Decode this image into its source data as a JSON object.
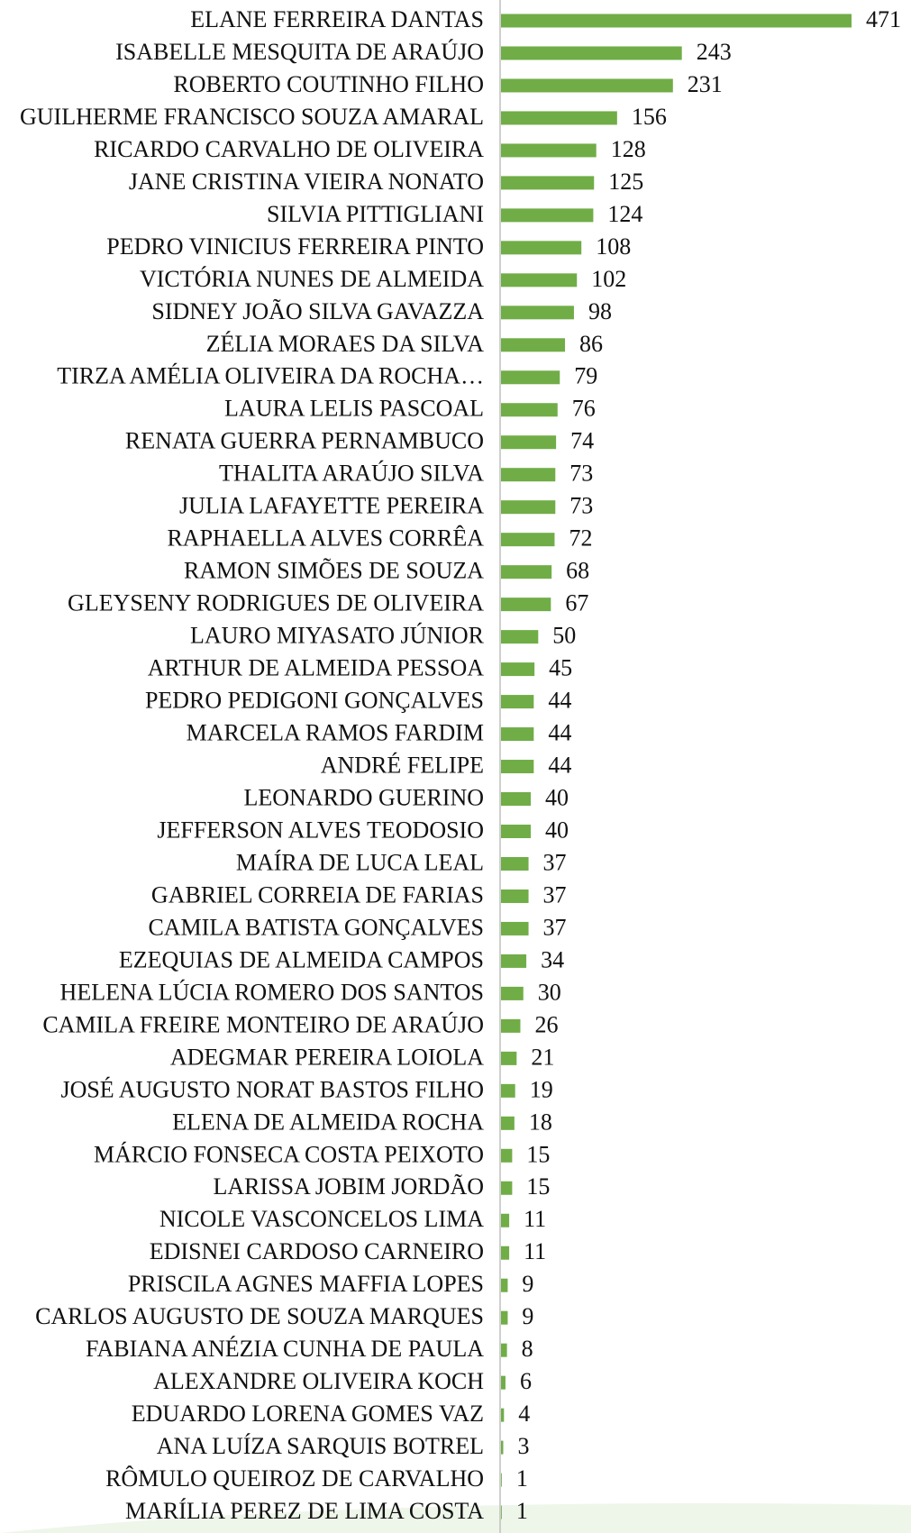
{
  "chart_data": {
    "type": "bar",
    "orientation": "horizontal",
    "color": "#70ad47",
    "categories": [
      "ELANE FERREIRA DANTAS",
      "ISABELLE MESQUITA DE ARAÚJO",
      "ROBERTO COUTINHO FILHO",
      "GUILHERME FRANCISCO SOUZA AMARAL",
      "RICARDO CARVALHO DE OLIVEIRA",
      "JANE CRISTINA VIEIRA NONATO",
      "SILVIA PITTIGLIANI",
      "PEDRO VINICIUS FERREIRA PINTO",
      "VICTÓRIA NUNES DE ALMEIDA",
      "SIDNEY JOÃO SILVA GAVAZZA",
      "ZÉLIA MORAES DA SILVA",
      "TIRZA AMÉLIA OLIVEIRA DA ROCHA…",
      "LAURA LELIS PASCOAL",
      "RENATA GUERRA PERNAMBUCO",
      "THALITA ARAÚJO SILVA",
      "JULIA LAFAYETTE PEREIRA",
      "RAPHAELLA ALVES CORRÊA",
      "RAMON SIMÕES DE SOUZA",
      "GLEYSENY RODRIGUES DE OLIVEIRA",
      "LAURO MIYASATO JÚNIOR",
      "ARTHUR DE ALMEIDA PESSOA",
      "PEDRO PEDIGONI GONÇALVES",
      "MARCELA RAMOS FARDIM",
      "ANDRÉ FELIPE",
      "LEONARDO GUERINO",
      "JEFFERSON ALVES TEODOSIO",
      "MAÍRA DE LUCA LEAL",
      "GABRIEL CORREIA DE FARIAS",
      "CAMILA BATISTA GONÇALVES",
      "EZEQUIAS DE ALMEIDA CAMPOS",
      "HELENA LÚCIA ROMERO DOS SANTOS",
      "CAMILA FREIRE MONTEIRO DE ARAÚJO",
      "ADEGMAR PEREIRA LOIOLA",
      "JOSÉ AUGUSTO NORAT BASTOS FILHO",
      "ELENA DE ALMEIDA ROCHA",
      "MÁRCIO FONSECA COSTA PEIXOTO",
      "LARISSA JOBIM JORDÃO",
      "NICOLE VASCONCELOS LIMA",
      "EDISNEI CARDOSO CARNEIRO",
      "PRISCILA AGNES MAFFIA LOPES",
      "CARLOS AUGUSTO DE SOUZA MARQUES",
      "FABIANA ANÉZIA CUNHA DE PAULA",
      "ALEXANDRE OLIVEIRA KOCH",
      "EDUARDO LORENA GOMES VAZ",
      "ANA LUÍZA SARQUIS BOTREL",
      "RÔMULO QUEIROZ DE CARVALHO",
      "MARÍLIA PEREZ DE LIMA COSTA"
    ],
    "values": [
      471,
      243,
      231,
      156,
      128,
      125,
      124,
      108,
      102,
      98,
      86,
      79,
      76,
      74,
      73,
      73,
      72,
      68,
      67,
      50,
      45,
      44,
      44,
      44,
      40,
      40,
      37,
      37,
      37,
      34,
      30,
      26,
      21,
      19,
      18,
      15,
      15,
      11,
      11,
      9,
      9,
      8,
      6,
      4,
      3,
      1,
      1
    ]
  }
}
